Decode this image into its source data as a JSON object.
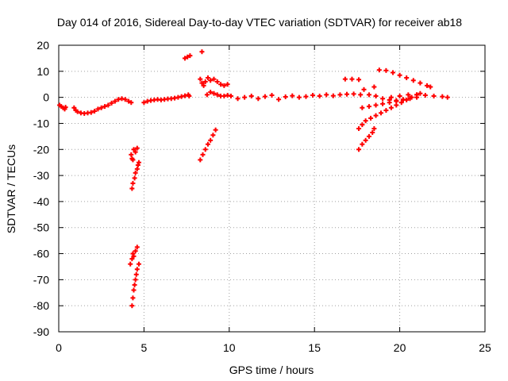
{
  "chart_data": {
    "type": "scatter",
    "title": "Day 014 of 2016, Sidereal Day-to-day VTEC variation (SDTVAR) for receiver ab18",
    "xlabel": "GPS time / hours",
    "ylabel": "SDTVAR / TECUs",
    "xlim": [
      0,
      25
    ],
    "ylim": [
      -90,
      20
    ],
    "xticks": [
      "0",
      "5",
      "10",
      "15",
      "20",
      "25"
    ],
    "yticks": [
      "20",
      "10",
      "0",
      "-10",
      "-20",
      "-30",
      "-40",
      "-50",
      "-60",
      "-70",
      "-80",
      "-90"
    ],
    "grid": true,
    "marker": "+",
    "color": "#ff0000",
    "points": [
      [
        0.05,
        -3
      ],
      [
        0.15,
        -3.5
      ],
      [
        0.25,
        -4
      ],
      [
        0.35,
        -4.5
      ],
      [
        0.4,
        -3.8
      ],
      [
        0.9,
        -4
      ],
      [
        1.0,
        -5
      ],
      [
        1.1,
        -5.5
      ],
      [
        1.3,
        -6
      ],
      [
        1.5,
        -6.2
      ],
      [
        1.7,
        -6
      ],
      [
        1.9,
        -5.8
      ],
      [
        2.1,
        -5.3
      ],
      [
        2.3,
        -4.5
      ],
      [
        2.5,
        -4
      ],
      [
        2.7,
        -3.5
      ],
      [
        2.9,
        -3
      ],
      [
        3.1,
        -2.2
      ],
      [
        3.3,
        -1.5
      ],
      [
        3.5,
        -0.8
      ],
      [
        3.7,
        -0.5
      ],
      [
        3.9,
        -0.8
      ],
      [
        4.1,
        -1.5
      ],
      [
        4.25,
        -2
      ],
      [
        4.4,
        -20
      ],
      [
        4.5,
        -21
      ],
      [
        4.6,
        -19.5
      ],
      [
        4.25,
        -22
      ],
      [
        4.3,
        -23.5
      ],
      [
        4.35,
        -24
      ],
      [
        4.3,
        -35
      ],
      [
        4.35,
        -33
      ],
      [
        4.45,
        -31
      ],
      [
        4.5,
        -29
      ],
      [
        4.6,
        -27.5
      ],
      [
        4.65,
        -26
      ],
      [
        4.7,
        -25
      ],
      [
        4.2,
        -64
      ],
      [
        4.3,
        -62
      ],
      [
        4.4,
        -61
      ],
      [
        4.5,
        -59
      ],
      [
        4.6,
        -57.5
      ],
      [
        4.35,
        -60
      ],
      [
        4.3,
        -80
      ],
      [
        4.35,
        -77
      ],
      [
        4.4,
        -74
      ],
      [
        4.45,
        -72
      ],
      [
        4.5,
        -70
      ],
      [
        4.55,
        -68
      ],
      [
        4.6,
        -66
      ],
      [
        4.7,
        -64
      ],
      [
        5.0,
        -2
      ],
      [
        5.2,
        -1.5
      ],
      [
        5.4,
        -1.2
      ],
      [
        5.6,
        -1
      ],
      [
        5.8,
        -0.8
      ],
      [
        6.0,
        -1
      ],
      [
        6.2,
        -0.8
      ],
      [
        6.4,
        -0.6
      ],
      [
        6.6,
        -0.5
      ],
      [
        6.8,
        -0.3
      ],
      [
        7.0,
        0
      ],
      [
        7.2,
        0.3
      ],
      [
        7.4,
        0.6
      ],
      [
        7.6,
        1
      ],
      [
        7.65,
        0.5
      ],
      [
        7.4,
        15
      ],
      [
        7.55,
        15.5
      ],
      [
        7.7,
        16
      ],
      [
        8.4,
        17.5
      ],
      [
        8.3,
        -24
      ],
      [
        8.45,
        -22
      ],
      [
        8.6,
        -20
      ],
      [
        8.75,
        -18
      ],
      [
        8.9,
        -16.5
      ],
      [
        9.05,
        -14.5
      ],
      [
        9.2,
        -12.5
      ],
      [
        8.3,
        7
      ],
      [
        8.4,
        5.5
      ],
      [
        8.5,
        4.5
      ],
      [
        8.6,
        6
      ],
      [
        8.75,
        7.5
      ],
      [
        8.9,
        6.5
      ],
      [
        9.1,
        7
      ],
      [
        9.3,
        6
      ],
      [
        9.5,
        5
      ],
      [
        9.7,
        4.5
      ],
      [
        9.9,
        5
      ],
      [
        8.7,
        1
      ],
      [
        8.9,
        2
      ],
      [
        9.1,
        1.5
      ],
      [
        9.3,
        1
      ],
      [
        9.5,
        0.5
      ],
      [
        9.7,
        0.5
      ],
      [
        9.9,
        0.8
      ],
      [
        10.1,
        0.5
      ],
      [
        10.5,
        -0.5
      ],
      [
        10.9,
        0
      ],
      [
        11.3,
        0.5
      ],
      [
        11.7,
        -0.5
      ],
      [
        12.1,
        0.3
      ],
      [
        12.5,
        0.8
      ],
      [
        12.9,
        -0.8
      ],
      [
        13.3,
        0.2
      ],
      [
        13.7,
        0.6
      ],
      [
        14.1,
        0
      ],
      [
        14.5,
        0.3
      ],
      [
        14.9,
        0.8
      ],
      [
        15.3,
        0.5
      ],
      [
        15.7,
        1
      ],
      [
        16.1,
        0.6
      ],
      [
        16.5,
        1
      ],
      [
        16.9,
        1.2
      ],
      [
        17.3,
        1.3
      ],
      [
        17.7,
        1
      ],
      [
        16.8,
        7
      ],
      [
        17.2,
        7
      ],
      [
        17.6,
        6.8
      ],
      [
        17.9,
        3
      ],
      [
        18.5,
        4
      ],
      [
        18.8,
        10.5
      ],
      [
        19.2,
        10.3
      ],
      [
        19.6,
        9.5
      ],
      [
        20.0,
        8.5
      ],
      [
        20.4,
        7.5
      ],
      [
        20.8,
        6.5
      ],
      [
        21.2,
        5.5
      ],
      [
        21.6,
        4.5
      ],
      [
        21.8,
        4
      ],
      [
        17.6,
        -20
      ],
      [
        17.8,
        -18
      ],
      [
        18.0,
        -16.5
      ],
      [
        18.2,
        -15
      ],
      [
        18.4,
        -13.5
      ],
      [
        18.5,
        -12
      ],
      [
        17.6,
        -12
      ],
      [
        17.8,
        -10.5
      ],
      [
        18.0,
        -9
      ],
      [
        18.3,
        -8
      ],
      [
        18.6,
        -7
      ],
      [
        18.9,
        -6
      ],
      [
        19.2,
        -5
      ],
      [
        19.5,
        -4
      ],
      [
        19.8,
        -3
      ],
      [
        20.1,
        -2
      ],
      [
        20.4,
        -1
      ],
      [
        20.7,
        0
      ],
      [
        21.0,
        1
      ],
      [
        21.2,
        1.5
      ],
      [
        17.8,
        -4
      ],
      [
        18.2,
        -3.5
      ],
      [
        18.6,
        -3
      ],
      [
        19.0,
        -2.5
      ],
      [
        19.4,
        -2
      ],
      [
        19.8,
        -1.5
      ],
      [
        20.2,
        -1
      ],
      [
        20.6,
        -0.5
      ],
      [
        18.2,
        1
      ],
      [
        18.6,
        0.5
      ],
      [
        19.0,
        -0.5
      ],
      [
        19.4,
        -1
      ],
      [
        19.8,
        -1.2
      ],
      [
        20.2,
        -0.8
      ],
      [
        20.6,
        -0.3
      ],
      [
        21.0,
        0
      ],
      [
        19.5,
        0
      ],
      [
        20.0,
        0.5
      ],
      [
        20.5,
        1
      ],
      [
        21.0,
        1
      ],
      [
        21.5,
        0.8
      ],
      [
        22.0,
        0.5
      ],
      [
        22.5,
        0.3
      ],
      [
        22.8,
        0
      ]
    ]
  }
}
